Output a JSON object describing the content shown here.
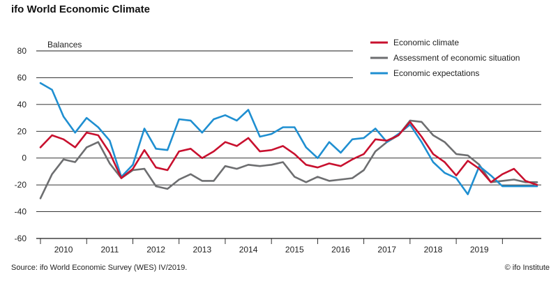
{
  "chart_data": {
    "type": "line",
    "title": "ifo World Economic Climate",
    "ylabel": "Balances",
    "xlabel": "",
    "ylim": [
      -60,
      80
    ],
    "yticks": [
      80,
      60,
      40,
      20,
      0,
      -20,
      -40,
      -60
    ],
    "grid": true,
    "legend_position": "top-right",
    "year_labels": [
      "2010",
      "2011",
      "2012",
      "2013",
      "2014",
      "2015",
      "2016",
      "2017",
      "2018",
      "2019"
    ],
    "x_start_year": 2009,
    "x_end_year": 2019.75,
    "x": [
      2009.0,
      2009.25,
      2009.5,
      2009.75,
      2010.0,
      2010.25,
      2010.5,
      2010.75,
      2011.0,
      2011.25,
      2011.5,
      2011.75,
      2012.0,
      2012.25,
      2012.5,
      2012.75,
      2013.0,
      2013.25,
      2013.5,
      2013.75,
      2014.0,
      2014.25,
      2014.5,
      2014.75,
      2015.0,
      2015.25,
      2015.5,
      2015.75,
      2016.0,
      2016.25,
      2016.5,
      2016.75,
      2017.0,
      2017.25,
      2017.5,
      2017.75,
      2018.0,
      2018.25,
      2018.5,
      2018.75,
      2019.0,
      2019.25,
      2019.5,
      2019.75
    ],
    "series": [
      {
        "name": "Economic climate",
        "color": "#c8102e",
        "values": [
          8,
          17,
          14,
          8,
          19,
          17,
          4,
          -15,
          -8,
          6,
          -7,
          -9,
          5,
          7,
          0,
          5,
          12,
          9,
          15,
          5,
          6,
          9,
          3,
          -5,
          -7,
          -4,
          -6,
          -1,
          3,
          14,
          13,
          17,
          27,
          16,
          3,
          -3,
          -13,
          -2,
          -8,
          -18,
          -12,
          -8,
          -17,
          -20
        ]
      },
      {
        "name": "Assessment of economic situation",
        "color": "#6d6e70",
        "values": [
          -30,
          -12,
          -1,
          -3,
          8,
          12,
          -4,
          -15,
          -9,
          -8,
          -21,
          -23,
          -16,
          -12,
          -17,
          -17,
          -6,
          -8,
          -5,
          -6,
          -5,
          -3,
          -14,
          -18,
          -14,
          -17,
          -16,
          -15,
          -9,
          5,
          12,
          17,
          28,
          27,
          17,
          12,
          3,
          2,
          -5,
          -18,
          -17,
          -16,
          -18,
          -18
        ]
      },
      {
        "name": "Economic expectations",
        "color": "#1f8fd1",
        "values": [
          56,
          51,
          31,
          19,
          30,
          23,
          13,
          -14,
          -5,
          22,
          7,
          6,
          29,
          28,
          19,
          29,
          32,
          28,
          36,
          16,
          18,
          23,
          23,
          8,
          0,
          12,
          4,
          14,
          15,
          22,
          12,
          18,
          25,
          12,
          -3,
          -11,
          -15,
          -27,
          -6,
          -13,
          -21,
          -21,
          -21,
          -21
        ]
      }
    ]
  },
  "footer": {
    "source": "Source: ifo World Economic Survey (WES) IV/2019.",
    "credit": "© ifo Institute"
  }
}
